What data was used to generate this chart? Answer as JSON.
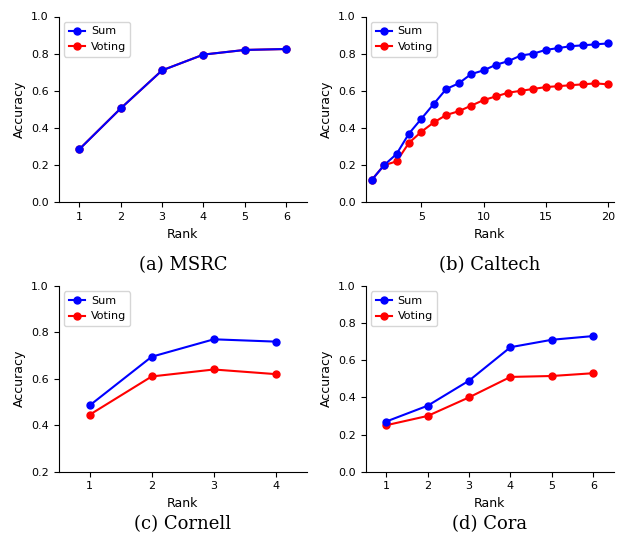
{
  "msrc": {
    "title": "(a) MSRC",
    "ranks": [
      1,
      2,
      3,
      4,
      5,
      6
    ],
    "sum": [
      0.285,
      0.505,
      0.71,
      0.795,
      0.82,
      0.825
    ],
    "voting": [
      0.285,
      0.505,
      0.71,
      0.795,
      0.82,
      0.825
    ],
    "ylim": [
      0,
      1
    ],
    "xlim": [
      0.5,
      6.5
    ],
    "yticks": [
      0,
      0.2,
      0.4,
      0.6,
      0.8,
      1.0
    ],
    "xticks": [
      1,
      2,
      3,
      4,
      5,
      6
    ]
  },
  "caltech": {
    "title": "(b) Caltech",
    "ranks": [
      1,
      2,
      3,
      4,
      5,
      6,
      7,
      8,
      9,
      10,
      11,
      12,
      13,
      14,
      15,
      16,
      17,
      18,
      19,
      20
    ],
    "sum": [
      0.12,
      0.2,
      0.26,
      0.37,
      0.45,
      0.53,
      0.61,
      0.64,
      0.69,
      0.71,
      0.74,
      0.76,
      0.79,
      0.8,
      0.82,
      0.83,
      0.84,
      0.845,
      0.85,
      0.855
    ],
    "voting": [
      0.12,
      0.2,
      0.22,
      0.32,
      0.38,
      0.43,
      0.47,
      0.49,
      0.52,
      0.55,
      0.57,
      0.59,
      0.6,
      0.61,
      0.62,
      0.625,
      0.63,
      0.635,
      0.64,
      0.635
    ],
    "ylim": [
      0,
      1
    ],
    "xlim": [
      0.5,
      20.5
    ],
    "yticks": [
      0,
      0.2,
      0.4,
      0.6,
      0.8,
      1.0
    ],
    "xticks": [
      5,
      10,
      15,
      20
    ]
  },
  "cornell": {
    "title": "(c) Cornell",
    "ranks": [
      1,
      2,
      3,
      4
    ],
    "sum": [
      0.485,
      0.695,
      0.77,
      0.76
    ],
    "voting": [
      0.445,
      0.61,
      0.64,
      0.62
    ],
    "ylim": [
      0.2,
      1
    ],
    "xlim": [
      0.5,
      4.5
    ],
    "yticks": [
      0.2,
      0.4,
      0.6,
      0.8,
      1.0
    ],
    "xticks": [
      1,
      2,
      3,
      4
    ]
  },
  "cora": {
    "title": "(d) Cora",
    "ranks": [
      1,
      2,
      3,
      4,
      5,
      6
    ],
    "sum": [
      0.27,
      0.355,
      0.49,
      0.67,
      0.71,
      0.73
    ],
    "voting": [
      0.25,
      0.3,
      0.4,
      0.51,
      0.515,
      0.53
    ],
    "ylim": [
      0,
      1
    ],
    "xlim": [
      0.5,
      6.5
    ],
    "yticks": [
      0,
      0.2,
      0.4,
      0.6,
      0.8,
      1.0
    ],
    "xticks": [
      1,
      2,
      3,
      4,
      5,
      6
    ]
  },
  "color_sum": "#0000FF",
  "color_voting": "#FF0000",
  "marker": "o",
  "linewidth": 1.5,
  "markersize": 5,
  "ylabel": "Accuracy",
  "xlabel": "Rank",
  "caption_fontsize": 13
}
